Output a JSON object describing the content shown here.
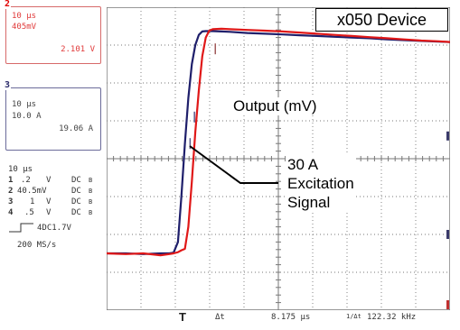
{
  "chart_data": {
    "type": "line",
    "title": "x050 Device",
    "annotations": [
      "Output (mV)",
      "30 A",
      "Excitation",
      "Signal"
    ],
    "x": [
      -8.2,
      -6,
      -4,
      -2,
      -1,
      -0.5,
      0,
      0.4,
      0.8,
      1.2,
      1.6,
      2.0,
      2.4,
      2.8,
      3.2,
      3.6,
      4.0,
      5,
      6,
      8,
      10,
      12,
      14,
      16,
      18,
      20,
      22,
      24,
      26,
      28,
      30,
      31.3
    ],
    "xlim": [
      -8.2,
      31.3
    ],
    "ylim": [
      -4,
      4
    ],
    "grid": true,
    "series": [
      {
        "values": [
          -2.5,
          -2.5,
          -2.52,
          -2.5,
          -2.5,
          -2.48,
          -2.2,
          -1.0,
          0.4,
          1.6,
          2.5,
          3.0,
          3.27,
          3.36,
          3.37,
          3.37,
          3.37,
          3.36,
          3.35,
          3.32,
          3.3,
          3.28,
          3.26,
          3.24,
          3.22,
          3.2,
          3.18,
          3.15,
          3.13,
          3.11,
          3.09,
          3.08
        ],
        "color": "#1f1f6b"
      },
      {
        "values": [
          -2.5,
          -2.52,
          -2.5,
          -2.55,
          -2.52,
          -2.5,
          -2.47,
          -2.42,
          -2.38,
          -1.8,
          -0.6,
          0.7,
          1.8,
          2.7,
          3.2,
          3.38,
          3.42,
          3.43,
          3.42,
          3.4,
          3.38,
          3.36,
          3.33,
          3.3,
          3.27,
          3.24,
          3.21,
          3.18,
          3.15,
          3.12,
          3.1,
          3.08
        ],
        "color": "#e01818"
      }
    ]
  },
  "readouts": {
    "ch2": {
      "num": "2",
      "time": "10 µs",
      "scale": "405mV",
      "value": "2.101 V"
    },
    "ch3": {
      "num": "3",
      "time": "10 µs",
      "scale": "10.0 A",
      "value": "19.06 A"
    }
  },
  "settings": {
    "timebase": "10 µs",
    "rows": [
      {
        "ch": "1",
        "val": ".2",
        "unit": "V",
        "coup": "DC",
        "bw": "B"
      },
      {
        "ch": "2",
        "val": "40.5mV",
        "unit": "",
        "coup": "DC",
        "bw": "B"
      },
      {
        "ch": "3",
        "val": "1",
        "unit": "V",
        "coup": "DC",
        "bw": "B"
      },
      {
        "ch": "4",
        "val": ".5",
        "unit": "V",
        "coup": "DC",
        "bw": "B"
      }
    ],
    "trigger": "4DC1.7V",
    "rate": "200 MS/s"
  },
  "measurement": {
    "t_marker": "T",
    "dt_label": "Δt",
    "dt_value": "8.175 µs",
    "freq_label": "1/Δt",
    "freq_value": "122.32 kHz"
  },
  "colors": {
    "grid": "#777777",
    "trace_blue": "#1f1f6b",
    "trace_red": "#e01818"
  }
}
